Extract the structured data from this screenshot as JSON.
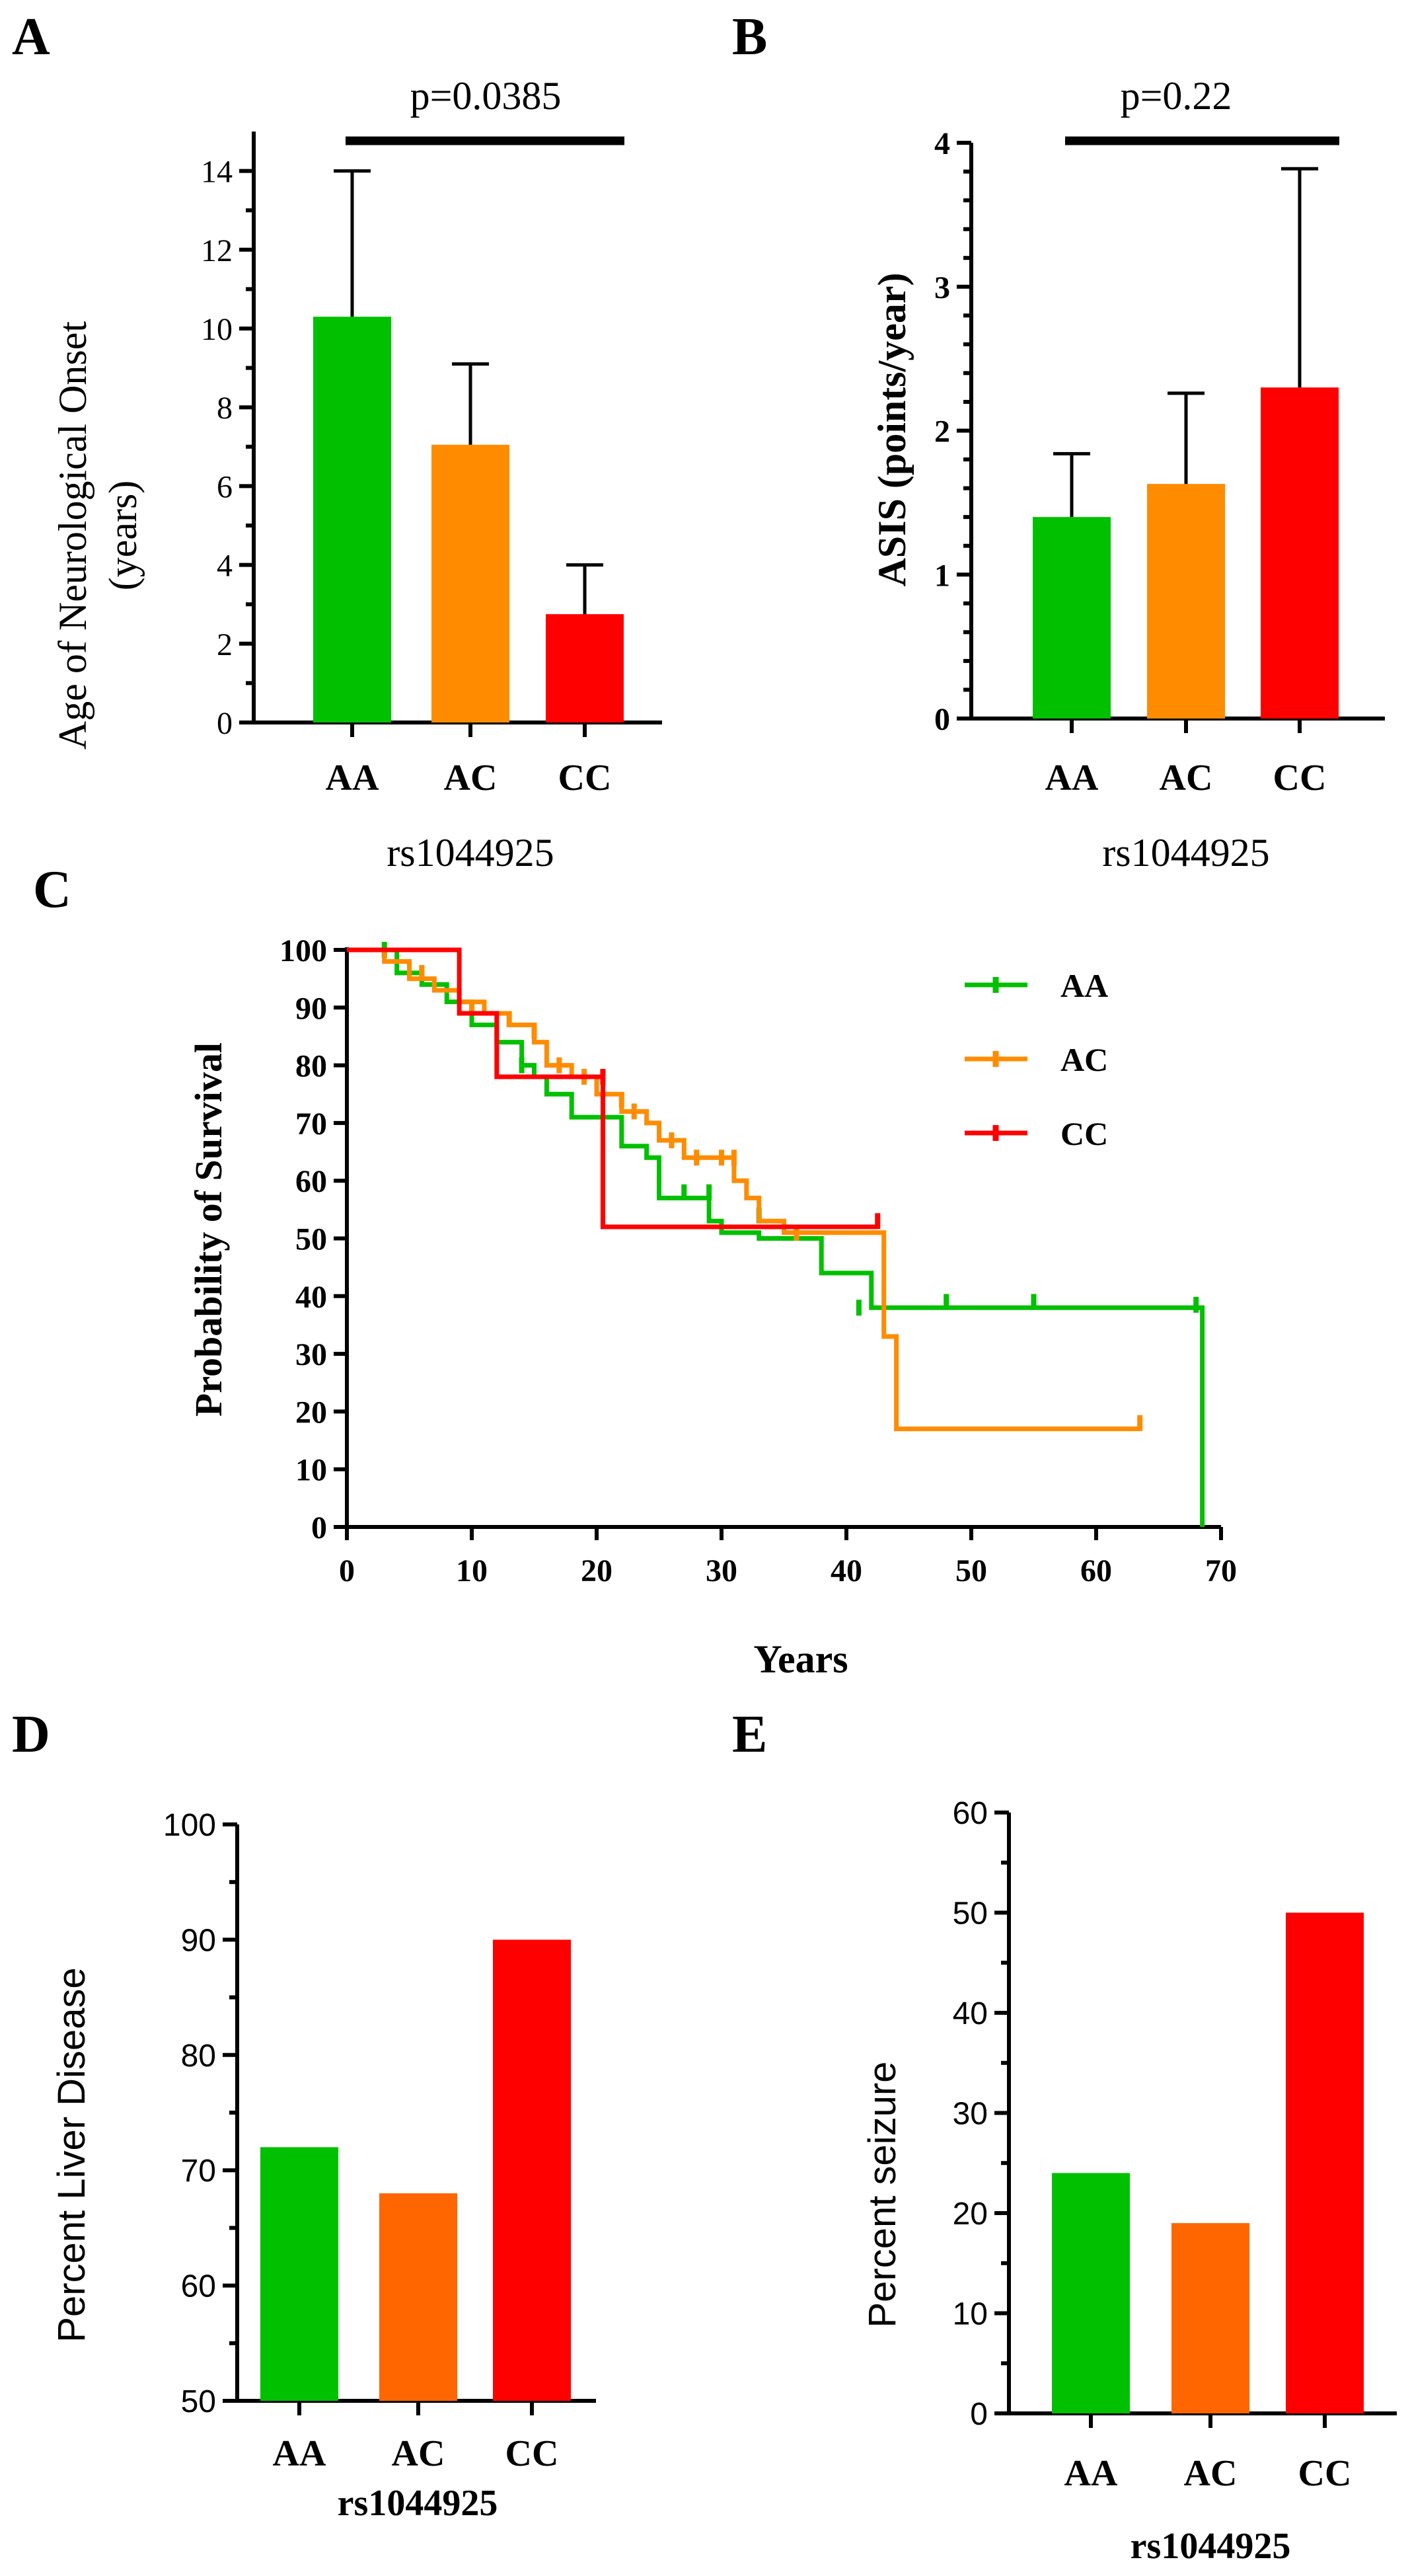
{
  "figure": {
    "panels": [
      "A",
      "B",
      "C",
      "D",
      "E"
    ]
  },
  "chart_data": [
    {
      "panel": "A",
      "type": "bar",
      "title": "",
      "xlabel": "rs1044925",
      "ylabel_lines": [
        "Age of Neurological Onset",
        "(years)"
      ],
      "categories": [
        "AA",
        "AC",
        "CC"
      ],
      "values": [
        10.3,
        7.05,
        2.75
      ],
      "error_upper": [
        14.0,
        9.1,
        4.0
      ],
      "colors": [
        "#00c000",
        "#ff8c00",
        "#ff0000"
      ],
      "ylim": [
        0,
        15
      ],
      "yticks": [
        "0",
        "2",
        "4",
        "6",
        "8",
        "10",
        "12",
        "14"
      ],
      "annotation": "p=0.0385"
    },
    {
      "panel": "B",
      "type": "bar",
      "title": "",
      "xlabel": "rs1044925",
      "ylabel_lines": [
        "ASIS (points/year)"
      ],
      "categories": [
        "AA",
        "AC",
        "CC"
      ],
      "values": [
        1.4,
        1.63,
        2.3
      ],
      "error_upper": [
        1.84,
        2.26,
        3.82
      ],
      "colors": [
        "#00c000",
        "#ff8c00",
        "#ff0000"
      ],
      "ylim": [
        0,
        4
      ],
      "yticks": [
        "0",
        "1",
        "2",
        "3",
        "4"
      ],
      "annotation": "p=0.22"
    },
    {
      "panel": "C",
      "type": "line",
      "title": "",
      "xlabel": "Years",
      "ylabel": "Probability of Survival",
      "xlim": [
        0,
        70
      ],
      "ylim": [
        0,
        100
      ],
      "xticks": [
        "0",
        "10",
        "20",
        "30",
        "40",
        "50",
        "60",
        "70"
      ],
      "yticks": [
        "0",
        "10",
        "20",
        "30",
        "40",
        "50",
        "60",
        "70",
        "80",
        "90",
        "100"
      ],
      "legend_position": "top-right",
      "series": [
        {
          "name": "AA",
          "color": "#00c000",
          "steps": [
            [
              0,
              100
            ],
            [
              4,
              96
            ],
            [
              6,
              94
            ],
            [
              8,
              91
            ],
            [
              10,
              87
            ],
            [
              12,
              84
            ],
            [
              14,
              80
            ],
            [
              15,
              78
            ],
            [
              16,
              75
            ],
            [
              18,
              71
            ],
            [
              21,
              71
            ],
            [
              22,
              66
            ],
            [
              24,
              64
            ],
            [
              25,
              57
            ],
            [
              29,
              53
            ],
            [
              30,
              51
            ],
            [
              33,
              50
            ],
            [
              38,
              44
            ],
            [
              42,
              38
            ],
            [
              68.5,
              38
            ],
            [
              68.5,
              0
            ]
          ],
          "censored": [
            [
              3,
              100
            ],
            [
              14,
              80
            ],
            [
              27,
              58
            ],
            [
              29,
              58
            ],
            [
              33,
              54
            ],
            [
              41,
              38
            ],
            [
              48,
              39
            ],
            [
              55,
              39
            ],
            [
              68,
              38.5
            ]
          ]
        },
        {
          "name": "AC",
          "color": "#ff8c00",
          "steps": [
            [
              0,
              100
            ],
            [
              3,
              98
            ],
            [
              5,
              95
            ],
            [
              7,
              93
            ],
            [
              9,
              91
            ],
            [
              11,
              89
            ],
            [
              13,
              87
            ],
            [
              15,
              84
            ],
            [
              16,
              80
            ],
            [
              18,
              78
            ],
            [
              20,
              75
            ],
            [
              22,
              72
            ],
            [
              24,
              70
            ],
            [
              25,
              67
            ],
            [
              27,
              64
            ],
            [
              31,
              60
            ],
            [
              32,
              57
            ],
            [
              33,
              53
            ],
            [
              35,
              51
            ],
            [
              42.5,
              51
            ],
            [
              43,
              33
            ],
            [
              44,
              17
            ],
            [
              63.5,
              17
            ]
          ],
          "censored": [
            [
              6,
              96
            ],
            [
              10,
              90
            ],
            [
              13,
              88
            ],
            [
              15,
              86
            ],
            [
              17,
              80
            ],
            [
              19,
              78
            ],
            [
              22,
              74
            ],
            [
              23,
              72
            ],
            [
              26,
              67
            ],
            [
              28,
              64
            ],
            [
              30,
              64
            ],
            [
              31,
              64
            ],
            [
              36,
              51
            ],
            [
              63.5,
              18
            ]
          ]
        },
        {
          "name": "CC",
          "color": "#ff0000",
          "steps": [
            [
              0,
              100
            ],
            [
              8.5,
              100
            ],
            [
              9,
              89
            ],
            [
              12,
              78
            ],
            [
              20.5,
              78
            ],
            [
              20.5,
              52
            ],
            [
              42.5,
              52
            ]
          ],
          "censored": [
            [
              20.5,
              78
            ],
            [
              42.5,
              53
            ]
          ]
        }
      ]
    },
    {
      "panel": "D",
      "type": "bar",
      "title": "",
      "xlabel": "rs1044925",
      "ylabel": "Percent Liver Disease",
      "categories": [
        "AA",
        "AC",
        "CC"
      ],
      "values": [
        72,
        68,
        90
      ],
      "colors": [
        "#00c000",
        "#ff6600",
        "#ff0000"
      ],
      "ylim": [
        50,
        100
      ],
      "yticks": [
        "50",
        "60",
        "70",
        "80",
        "90",
        "100"
      ]
    },
    {
      "panel": "E",
      "type": "bar",
      "title": "",
      "xlabel": "rs1044925",
      "ylabel": "Percent seizure",
      "categories": [
        "AA",
        "AC",
        "CC"
      ],
      "values": [
        24,
        19,
        50
      ],
      "colors": [
        "#00c000",
        "#ff6600",
        "#ff0000"
      ],
      "ylim": [
        0,
        60
      ],
      "yticks": [
        "0",
        "10",
        "20",
        "30",
        "40",
        "50",
        "60"
      ]
    }
  ]
}
